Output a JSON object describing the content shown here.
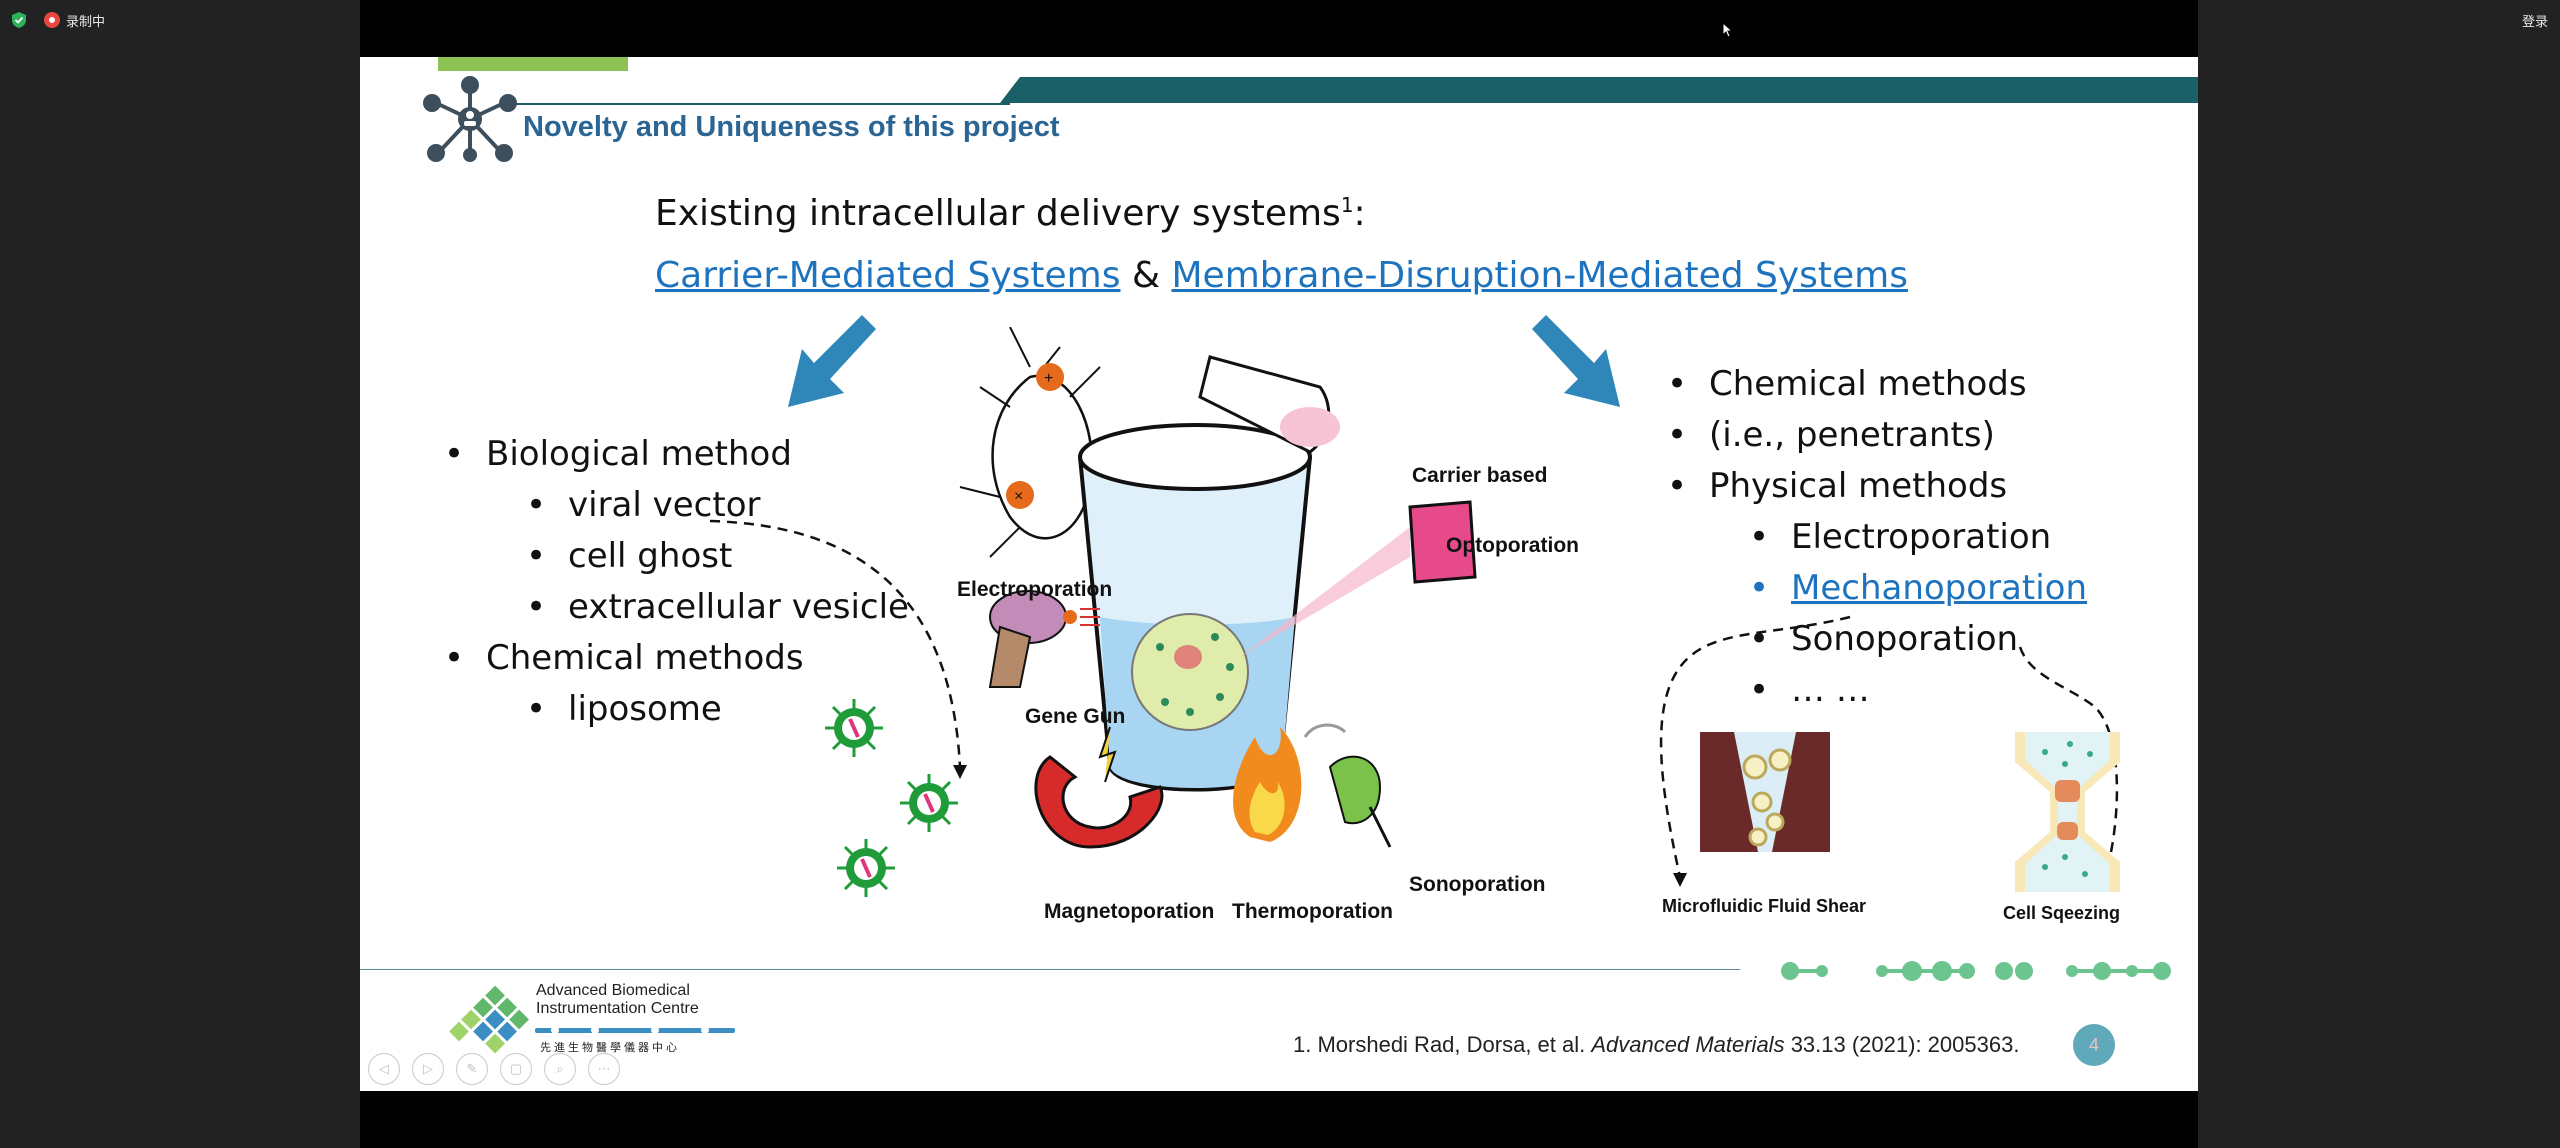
{
  "topbar": {
    "recording_label": "录制中",
    "login_label": "登录"
  },
  "slide": {
    "title": "Novelty and Uniqueness of this project",
    "heading_prefix": "Existing intracellular delivery systems",
    "heading_superscript": "1",
    "heading_colon": ":",
    "carrier_link": "Carrier-Mediated Systems",
    "ampersand": "&",
    "membrane_link": "Membrane-Disruption-Mediated Systems",
    "left_list": {
      "biological": "Biological method",
      "viral_vector": "viral vector",
      "cell_ghost": "cell ghost",
      "extracellular_vesicle": "extracellular vesicle",
      "chemical": "Chemical methods",
      "liposome": "liposome"
    },
    "right_list": {
      "chemical": "Chemical methods",
      "penetrants": "(i.e., penetrants)",
      "physical": "Physical methods",
      "electroporation": "Electroporation",
      "mechanoporation": "Mechanoporation",
      "sonoporation": "Sonoporation",
      "ellipsis": "… …"
    },
    "figure_labels": {
      "electroporation": "Electroporation",
      "carrier_based": "Carrier based",
      "optoporation": "Optoporation",
      "gene_gun": "Gene Gun",
      "magnetoporation": "Magnetoporation",
      "thermoporation": "Thermoporation",
      "sonoporation": "Sonoporation",
      "microfluidic": "Microfluidic Fluid Shear",
      "cell_squeezing": "Cell Sqeezing"
    },
    "logo": {
      "line1": "Advanced Biomedical",
      "line2": "Instrumentation Centre",
      "chinese": "先進生物醫學儀器中心"
    },
    "citation": {
      "authors": "1. Morshedi Rad, Dorsa, et al. ",
      "journal": "Advanced Materials",
      "details": " 33.13 (2021): 2005363."
    },
    "page_number": "4"
  },
  "colors": {
    "title": "#2a6594",
    "link": "#1e73be",
    "teal_bar": "#1b5f68",
    "green_tab": "#8dc255",
    "arrow": "#2f86b8"
  }
}
